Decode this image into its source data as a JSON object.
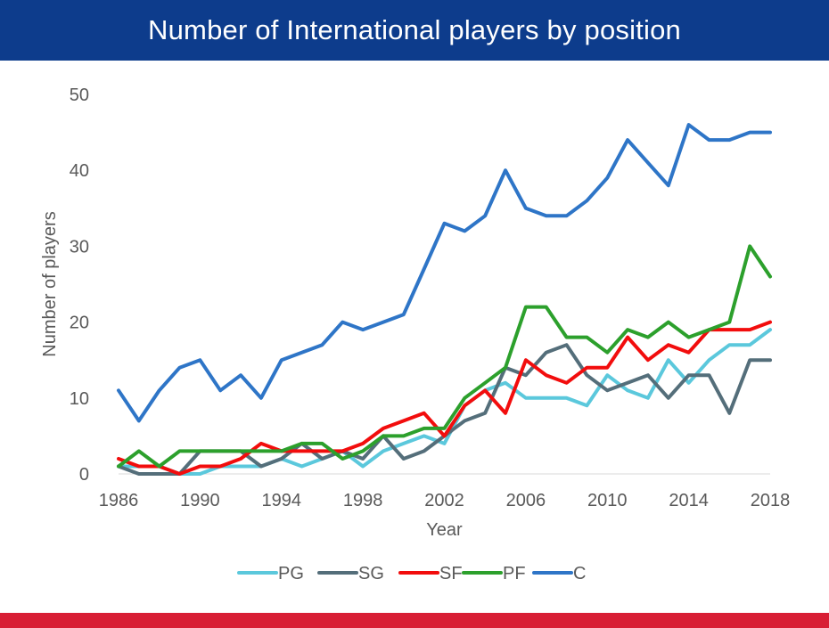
{
  "colors": {
    "header_bg": "#0D3C8C",
    "bottom_bar": "#D81E34",
    "text": "#595959",
    "axis_line": "#D9D9D9"
  },
  "chart_data": {
    "type": "line",
    "title": "Number of International players by position",
    "xlabel": "Year",
    "ylabel": "Number of players",
    "xlim": [
      1986,
      2018
    ],
    "ylim": [
      0,
      50
    ],
    "x_ticks": [
      1986,
      1990,
      1994,
      1998,
      2002,
      2006,
      2010,
      2014,
      2018
    ],
    "x_tick_labels": [
      "1986",
      "1990",
      "1994",
      "1998",
      "2002",
      "2006",
      "2010",
      "2014",
      "2018"
    ],
    "y_ticks": [
      0,
      10,
      20,
      30,
      40,
      50
    ],
    "y_tick_labels": [
      "0",
      "10",
      "20",
      "30",
      "40",
      "50"
    ],
    "grid": false,
    "legend_position": "bottom",
    "x": [
      1986,
      1987,
      1988,
      1989,
      1990,
      1991,
      1992,
      1993,
      1994,
      1995,
      1996,
      1997,
      1998,
      1999,
      2000,
      2001,
      2002,
      2003,
      2004,
      2005,
      2006,
      2007,
      2008,
      2009,
      2010,
      2011,
      2012,
      2013,
      2014,
      2015,
      2016,
      2017,
      2018
    ],
    "series": [
      {
        "name": "PG",
        "color": "#5BC8DC",
        "values": [
          1,
          1,
          1,
          0,
          0,
          1,
          1,
          1,
          2,
          1,
          2,
          3,
          1,
          3,
          4,
          5,
          4,
          9,
          11,
          12,
          10,
          10,
          10,
          9,
          13,
          11,
          10,
          15,
          12,
          15,
          17,
          17,
          19
        ]
      },
      {
        "name": "SG",
        "color": "#546E7A",
        "values": [
          1,
          0,
          0,
          0,
          3,
          3,
          3,
          1,
          2,
          4,
          2,
          3,
          2,
          5,
          2,
          3,
          5,
          7,
          8,
          14,
          13,
          16,
          17,
          13,
          11,
          12,
          13,
          10,
          13,
          13,
          8,
          15,
          15
        ]
      },
      {
        "name": "SF",
        "color": "#F20D0D",
        "values": [
          2,
          1,
          1,
          0,
          1,
          1,
          2,
          4,
          3,
          3,
          3,
          3,
          4,
          6,
          7,
          8,
          5,
          9,
          11,
          8,
          15,
          13,
          12,
          14,
          14,
          18,
          15,
          17,
          16,
          19,
          19,
          19,
          20
        ]
      },
      {
        "name": "PF",
        "color": "#2CA02C",
        "values": [
          1,
          3,
          1,
          3,
          3,
          3,
          3,
          3,
          3,
          4,
          4,
          2,
          3,
          5,
          5,
          6,
          6,
          10,
          12,
          14,
          22,
          22,
          18,
          18,
          16,
          19,
          18,
          20,
          18,
          19,
          20,
          30,
          26
        ]
      },
      {
        "name": "C",
        "color": "#2E75C7",
        "values": [
          11,
          7,
          11,
          14,
          15,
          11,
          13,
          10,
          15,
          16,
          17,
          20,
          19,
          20,
          21,
          27,
          33,
          32,
          34,
          40,
          35,
          34,
          34,
          36,
          39,
          44,
          41,
          38,
          46,
          44,
          44,
          45,
          45
        ]
      }
    ]
  }
}
